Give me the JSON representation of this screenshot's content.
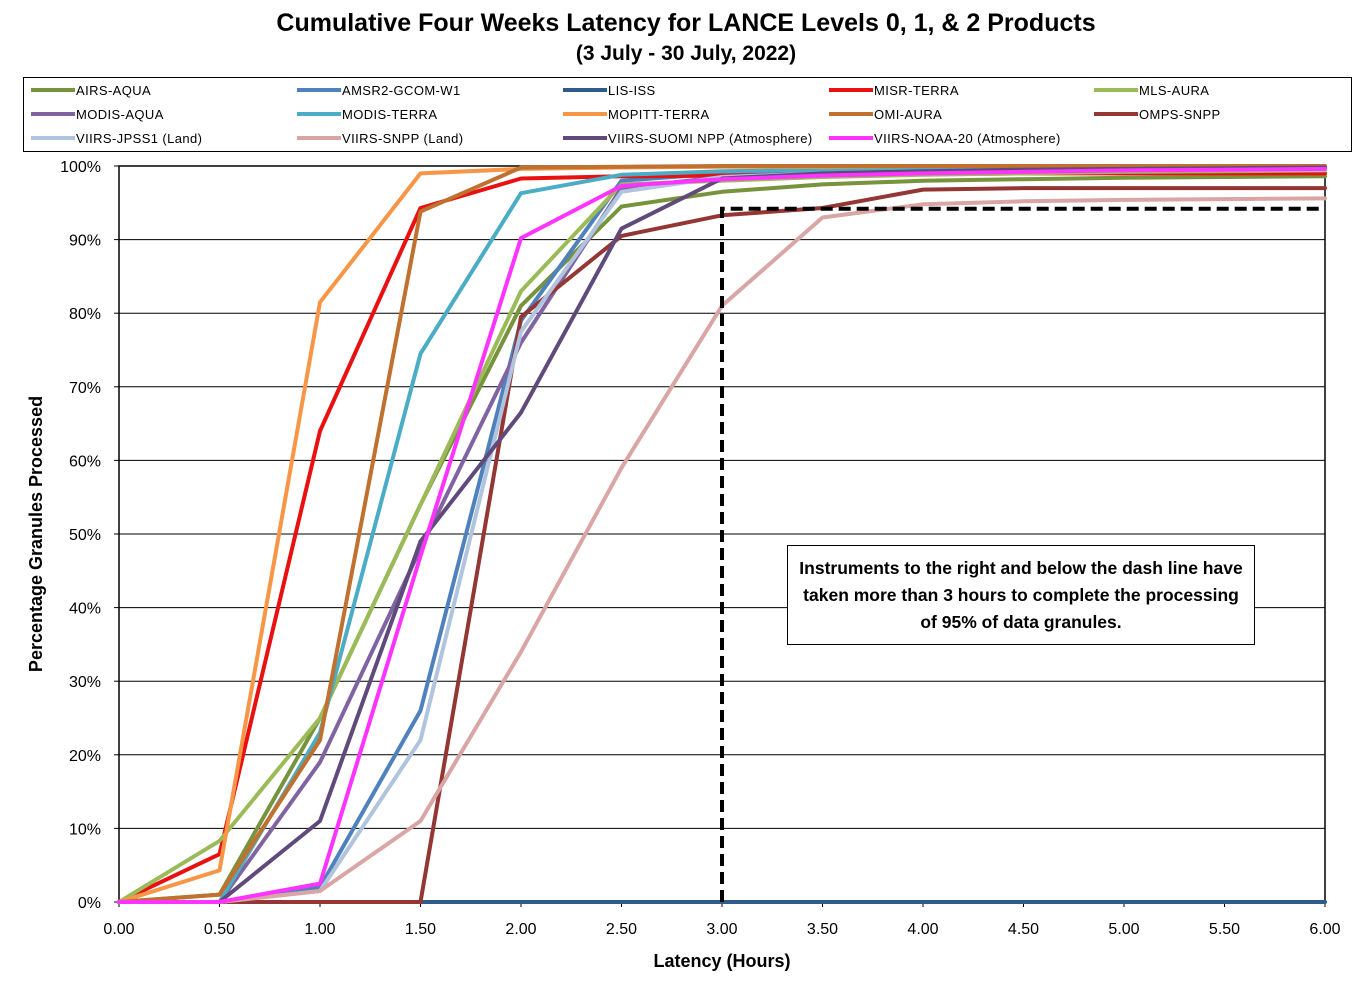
{
  "chart_data": {
    "type": "line",
    "title": "Cumulative Four Weeks Latency  for LANCE Levels 0, 1, & 2 Products",
    "subtitle": "(3  July   -  30  July,  2022)",
    "xlabel": "Latency (Hours)",
    "ylabel": "Percentage Granules Processed",
    "xlim": [
      0,
      6
    ],
    "ylim": [
      0,
      100
    ],
    "grid": "horizontal",
    "legend_position": "top",
    "x": [
      0,
      0.5,
      1,
      1.5,
      2,
      2.5,
      3,
      3.5,
      4,
      4.5,
      5,
      5.5,
      6
    ],
    "x_tick_labels": [
      "0.00",
      "0.50",
      "1.00",
      "1.50",
      "2.00",
      "2.50",
      "3.00",
      "3.50",
      "4.00",
      "4.50",
      "5.00",
      "5.50",
      "6.00"
    ],
    "y_ticks": [
      0,
      10,
      20,
      30,
      40,
      50,
      60,
      70,
      80,
      90,
      100
    ],
    "y_tick_labels": [
      "0%",
      "10%",
      "20%",
      "30%",
      "40%",
      "50%",
      "60%",
      "70%",
      "80%",
      "90%",
      "100%"
    ],
    "series": [
      {
        "name": "AIRS-AQUA",
        "color": "#77933C",
        "values": [
          0,
          1,
          25,
          54,
          81,
          94.5,
          96.5,
          97.5,
          98,
          98.2,
          98.4,
          98.5,
          98.6
        ]
      },
      {
        "name": "AMSR2-GCOM-W1",
        "color": "#4F81BD",
        "values": [
          0,
          0,
          2,
          26,
          79,
          98,
          99,
          99.3,
          99.5,
          99.6,
          99.7,
          99.8,
          99.8
        ]
      },
      {
        "name": "LIS-ISS",
        "color": "#2E5C8A",
        "values": [
          0,
          0,
          0,
          0,
          0,
          0,
          0,
          0,
          0,
          0,
          0,
          0,
          0
        ]
      },
      {
        "name": "MISR-TERRA",
        "color": "#E81010",
        "values": [
          0,
          6.5,
          64,
          94.3,
          98.3,
          98.6,
          98.7,
          98.8,
          98.9,
          99,
          99,
          99,
          99
        ]
      },
      {
        "name": "MLS-AURA",
        "color": "#9BBB59",
        "values": [
          0,
          8.3,
          25,
          54,
          83,
          97.5,
          98,
          98.5,
          98.8,
          99,
          99.2,
          99.3,
          99.4
        ]
      },
      {
        "name": "MODIS-AQUA",
        "color": "#8064A2",
        "values": [
          0,
          0,
          19,
          48,
          76,
          97,
          98.5,
          99,
          99.3,
          99.5,
          99.6,
          99.7,
          99.8
        ]
      },
      {
        "name": "MODIS-TERRA",
        "color": "#4BACC6",
        "values": [
          0,
          0,
          23,
          74.5,
          96.3,
          98.8,
          99.3,
          99.5,
          99.7,
          99.8,
          99.8,
          99.9,
          99.9
        ]
      },
      {
        "name": "MOPITT-TERRA",
        "color": "#F79646",
        "values": [
          0,
          4.3,
          81.5,
          99,
          99.6,
          99.8,
          99.9,
          99.9,
          100,
          100,
          100,
          100,
          100
        ]
      },
      {
        "name": "OMI-AURA",
        "color": "#C0702F",
        "values": [
          0,
          1,
          22,
          93.8,
          99.8,
          99.9,
          100,
          100,
          100,
          100,
          100,
          100,
          100
        ]
      },
      {
        "name": "OMPS-SNPP",
        "color": "#943634",
        "values": [
          0,
          0,
          0,
          0,
          79.5,
          90.5,
          93.3,
          94.3,
          96.8,
          97,
          97,
          97,
          97
        ]
      },
      {
        "name": "VIIRS-JPSS1 (Land)",
        "color": "#B0C4DE",
        "values": [
          0,
          0,
          1.5,
          22,
          77.5,
          96.5,
          98.5,
          99,
          99.2,
          99.3,
          99.4,
          99.5,
          99.5
        ]
      },
      {
        "name": "VIIRS-SNPP (Land)",
        "color": "#D9A5A5",
        "values": [
          0,
          0,
          1.5,
          11,
          34,
          59,
          81,
          93,
          94.8,
          95.2,
          95.4,
          95.5,
          95.6
        ]
      },
      {
        "name": "VIIRS-SUOMI NPP  (Atmosphere)",
        "color": "#604A7B",
        "values": [
          0,
          0,
          11,
          49,
          66.5,
          91.5,
          98.3,
          99,
          99.3,
          99.5,
          99.6,
          99.7,
          99.8
        ]
      },
      {
        "name": "VIIRS-NOAA-20 (Atmosphere)",
        "color": "#FF33FF",
        "values": [
          0,
          0,
          2.5,
          47,
          90.2,
          97.3,
          98.2,
          98.7,
          99,
          99.2,
          99.4,
          99.5,
          99.6
        ]
      }
    ],
    "threshold_line": {
      "style": "dashed",
      "color": "#000000",
      "points": [
        [
          3,
          0
        ],
        [
          3,
          94.2
        ],
        [
          6,
          94.2
        ]
      ]
    },
    "annotation": "Instruments to the right and below the dash line have taken more than 3 hours to complete the processing of 95% of data granules."
  }
}
